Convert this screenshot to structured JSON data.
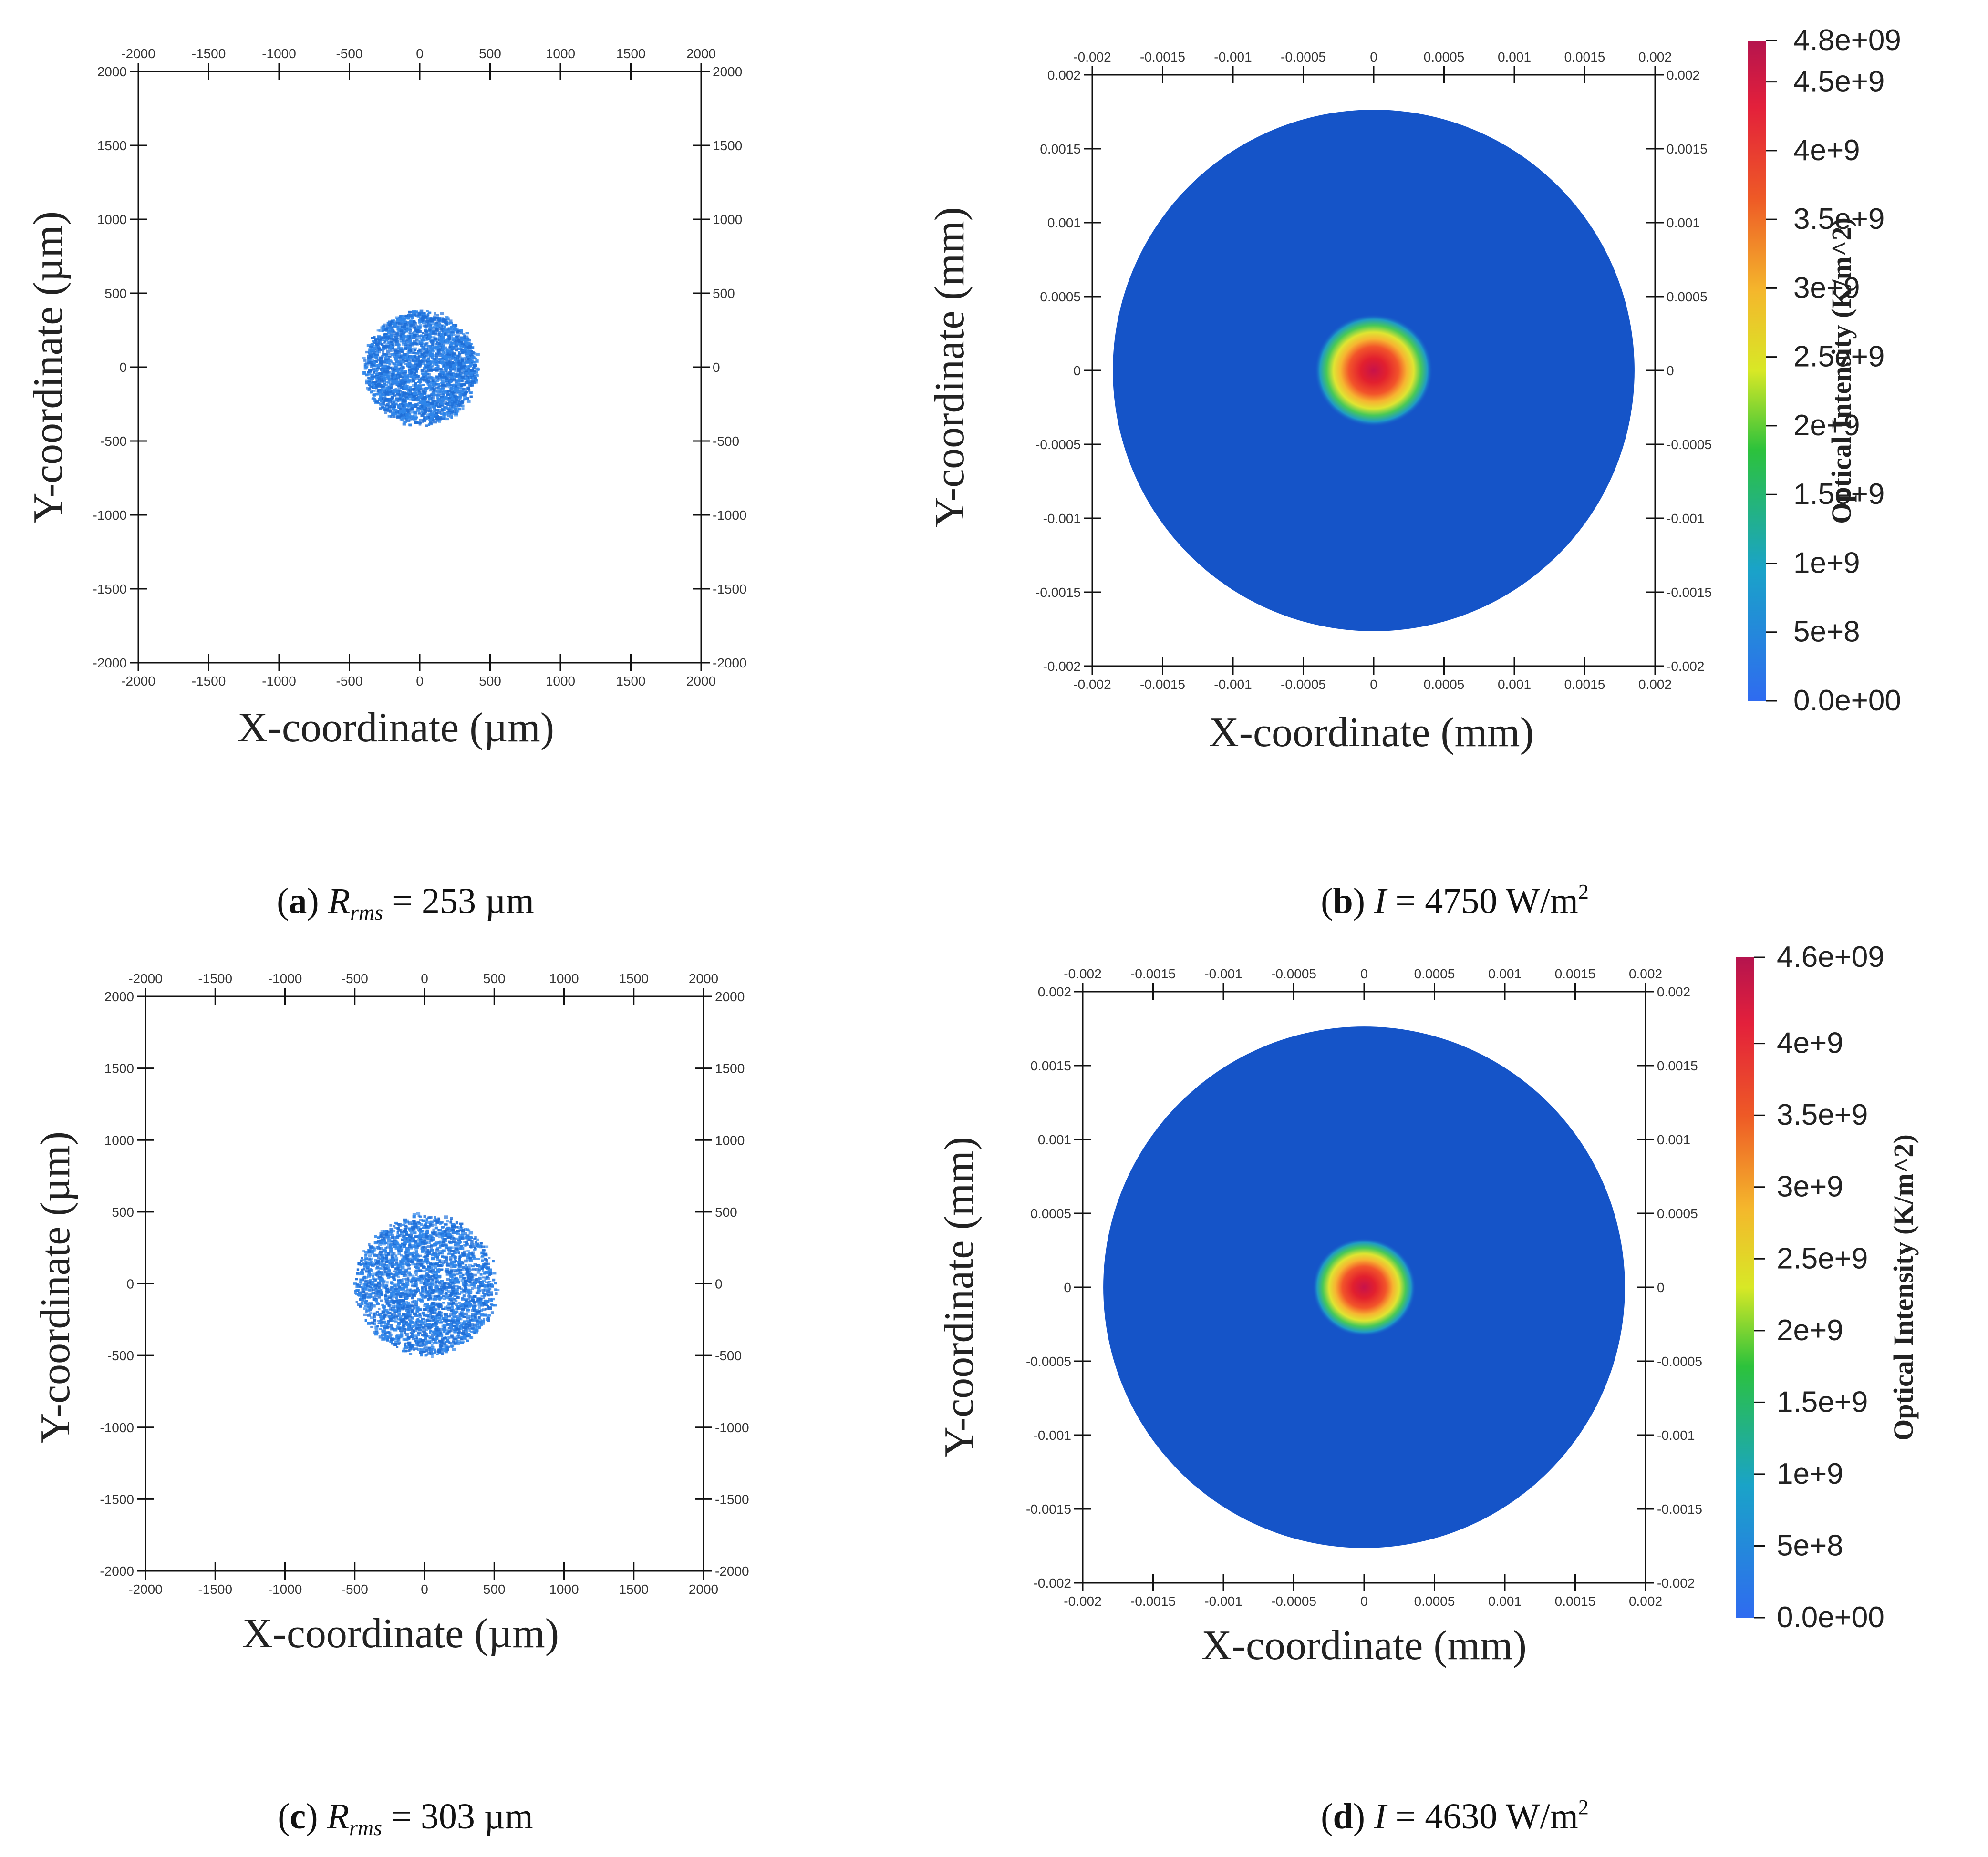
{
  "chart_data": [
    {
      "panel": "a",
      "type": "scatter",
      "xlabel": "X-coordinate (µm)",
      "ylabel": "Y-coordinate (µm)",
      "xlim": [
        -2000,
        2000
      ],
      "ylim": [
        -2000,
        2000
      ],
      "ticks": [
        -2000,
        -1500,
        -1000,
        -500,
        0,
        500,
        1000,
        1500,
        2000
      ],
      "spot_center": [
        0,
        0
      ],
      "spot_radius": 420,
      "point_color": "#2f86ea",
      "caption": {
        "letter": "a",
        "var": "R",
        "sub": "rms",
        "value": " = 253 µm"
      }
    },
    {
      "panel": "b",
      "type": "heatmap",
      "xlabel": "X-coordinate (mm)",
      "ylabel": "Y-coordinate (mm)",
      "xlim": [
        -0.002,
        0.002
      ],
      "ylim": [
        -0.002,
        0.002
      ],
      "ticks": [
        "-0.002",
        "-0.0015",
        "-0.001",
        "-0.0005",
        "0",
        "0.0005",
        "0.001",
        "0.0015",
        "0.002"
      ],
      "disk_radius": 0.0018,
      "hot_radius": 0.0004,
      "colorbar": {
        "title": "Optical Intensity (K/m^2)",
        "max": 4800000000,
        "labels": [
          "0.0e+00",
          "5e+8",
          "1e+9",
          "1.5e+9",
          "2e+9",
          "2.5e+9",
          "3e+9",
          "3.5e+9",
          "4e+9",
          "4.5e+9",
          "4.8e+09"
        ],
        "values": [
          0,
          500000000,
          1000000000,
          1500000000,
          2000000000,
          2500000000,
          3000000000,
          3500000000,
          4000000000,
          4500000000,
          4800000000
        ]
      },
      "caption": {
        "letter": "b",
        "var": "I",
        "value": " = 4750 W/m",
        "sup": "2"
      }
    },
    {
      "panel": "c",
      "type": "scatter",
      "xlabel": "X-coordinate (µm)",
      "ylabel": "Y-coordinate (µm)",
      "xlim": [
        -2000,
        2000
      ],
      "ylim": [
        -2000,
        2000
      ],
      "ticks": [
        -2000,
        -1500,
        -1000,
        -500,
        0,
        500,
        1000,
        1500,
        2000
      ],
      "spot_center": [
        0,
        0
      ],
      "spot_radius": 520,
      "point_color": "#2f86ea",
      "caption": {
        "letter": "c",
        "var": "R",
        "sub": "rms",
        "value": " = 303 µm"
      }
    },
    {
      "panel": "d",
      "type": "heatmap",
      "xlabel": "X-coordinate (mm)",
      "ylabel": "Y-coordinate (mm)",
      "xlim": [
        -0.002,
        0.002
      ],
      "ylim": [
        -0.002,
        0.002
      ],
      "ticks": [
        "-0.002",
        "-0.0015",
        "-0.001",
        "-0.0005",
        "0",
        "0.0005",
        "0.001",
        "0.0015",
        "0.002"
      ],
      "disk_radius": 0.0018,
      "hot_radius": 0.00035,
      "colorbar": {
        "title": "Optical Intensity (K/m^2)",
        "max": 4600000000,
        "labels": [
          "0.0e+00",
          "5e+8",
          "1e+9",
          "1.5e+9",
          "2e+9",
          "2.5e+9",
          "3e+9",
          "3.5e+9",
          "4e+9",
          "4.6e+09"
        ],
        "values": [
          0,
          500000000,
          1000000000,
          1500000000,
          2000000000,
          2500000000,
          3000000000,
          3500000000,
          4000000000,
          4600000000
        ]
      },
      "caption": {
        "letter": "d",
        "var": "I",
        "value": " = 4630 W/m",
        "sup": "2"
      }
    }
  ]
}
